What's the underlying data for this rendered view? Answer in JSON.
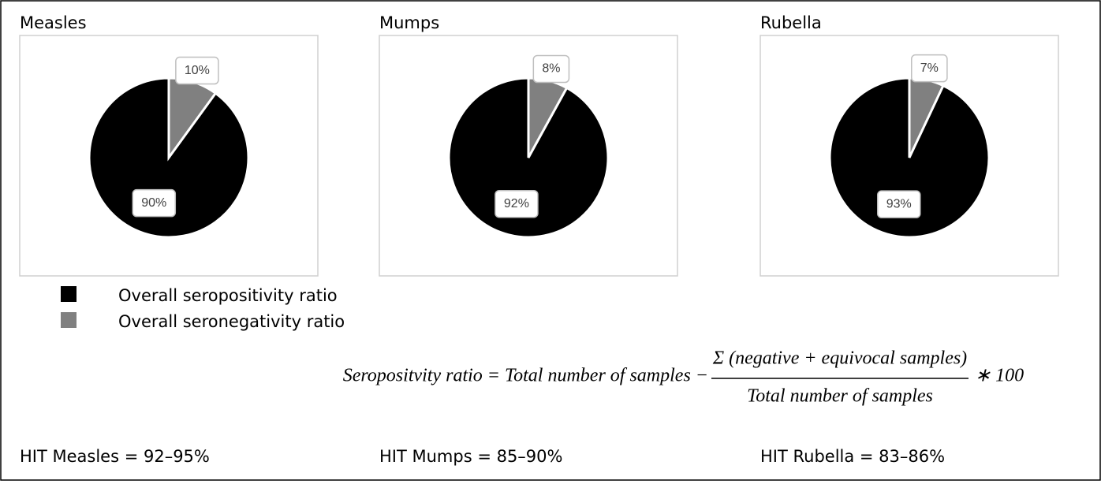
{
  "chart_data": [
    {
      "type": "pie",
      "title": "Measles",
      "values": [
        90,
        10
      ],
      "value_labels": [
        "90%",
        "10%"
      ]
    },
    {
      "type": "pie",
      "title": "Mumps",
      "values": [
        92,
        8
      ],
      "value_labels": [
        "92%",
        "8%"
      ]
    },
    {
      "type": "pie",
      "title": "Rubella",
      "values": [
        93,
        7
      ],
      "value_labels": [
        "93%",
        "7%"
      ]
    }
  ],
  "legend": [
    {
      "name": "Overall seropositivity ratio",
      "color": "#000000"
    },
    {
      "name": "Overall seronegativity ratio",
      "color": "#808080"
    }
  ],
  "formula": {
    "left": "Seropositvity ratio = Total number of samples −",
    "numerator": "Σ (negative + equivocal samples)",
    "denominator": "Total number of samples",
    "right": "∗ 100"
  },
  "hit": [
    "HIT Measles = 92–95%",
    "HIT Mumps = 85–90%",
    "HIT Rubella = 83–86%"
  ]
}
